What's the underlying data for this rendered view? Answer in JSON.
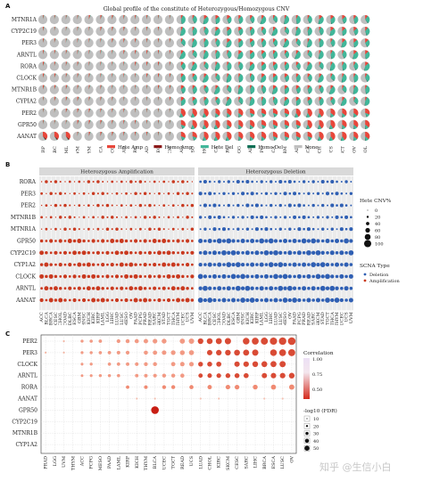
{
  "panelA": {
    "letter": "A",
    "title": "Global profile of the constitute of Heterozygous/Homozygous CNV",
    "rows": [
      "MTNR1A",
      "CYP2C19",
      "PER3",
      "ARNTL",
      "RORA",
      "CLOCK",
      "MTNR1B",
      "CYPIA2",
      "PER2",
      "GPR50",
      "AANAT"
    ],
    "columns": [
      "KIRP",
      "DLBC",
      "LAML",
      "UVM",
      "THYM",
      "THCA",
      "ACC",
      "LUAD",
      "KIRC",
      "PRAD",
      "UCEC",
      "SKCM",
      "PAAD",
      "MESO",
      "LIHC",
      "ESCA",
      "SARC",
      "LGG",
      "COAD",
      "PCPG",
      "BRCA",
      "GBM",
      "READ",
      "BLCA",
      "KICH",
      "UCS",
      "TGCT",
      "OV",
      "CHOL"
    ],
    "legend": [
      {
        "label": "Hete Amp",
        "color": "#e8473b"
      },
      {
        "label": "Homo Amp",
        "color": "#8b1a1a"
      },
      {
        "label": "Hete Del",
        "color": "#41b79a"
      },
      {
        "label": "Homo Del",
        "color": "#0c6e54"
      },
      {
        "label": "None",
        "color": "#bfbfbf"
      }
    ]
  },
  "panelB": {
    "letter": "B",
    "facets": [
      "Heterozygous Amplification",
      "Heterozygous Deletion"
    ],
    "rows": [
      "RORA",
      "PER3",
      "PER2",
      "MTNR1B",
      "MTNR1A",
      "GPR50",
      "CYP2C19",
      "CYP1A2",
      "CLOCK",
      "ARNTL",
      "AANAT"
    ],
    "columns": [
      "ACC",
      "BLCA",
      "BRCA",
      "CESC",
      "CHOL",
      "COAD",
      "DLBC",
      "ESCA",
      "GBM",
      "HNSC",
      "KICH",
      "KIRC",
      "KIRP",
      "LAML",
      "LGG",
      "LIHC",
      "LUAD",
      "LUSC",
      "MESO",
      "OV",
      "PAAD",
      "PCPG",
      "PRAD",
      "READ",
      "SARC",
      "SKCM",
      "STAD",
      "TGCT",
      "THCA",
      "THYM",
      "UCEC",
      "UCS",
      "UVM"
    ],
    "size_legend_title": "Hete CNV%",
    "size_legend": [
      "0",
      "20",
      "40",
      "60",
      "80",
      "100"
    ],
    "type_legend_title": "SCNA Type",
    "type_legend": [
      {
        "label": "Deletion",
        "color": "#2f5fb3"
      },
      {
        "label": "Amplification",
        "color": "#c9391f"
      }
    ]
  },
  "panelC": {
    "letter": "C",
    "rows": [
      "PER2",
      "PER3",
      "CLOCK",
      "ARNTL",
      "RORA",
      "AANAT",
      "GPR50",
      "CYP2C19",
      "MTNR1B",
      "CYP1A2"
    ],
    "columns": [
      "PRAD",
      "LGG",
      "UVM",
      "THYM",
      "ACC",
      "PCPG",
      "MESO",
      "PAAD",
      "LAML",
      "KIRP",
      "KICH",
      "THYM",
      "BLCA",
      "UCEC",
      "TGCT",
      "READ",
      "UCS",
      "LUAD",
      "CHOL",
      "KIRC",
      "SKCM",
      "CESC",
      "SARC",
      "LIHC",
      "BRCA",
      "ESCA",
      "LUSC",
      "OV"
    ],
    "color_legend_title": "Correlation",
    "color_legend_ticks": [
      "1.00",
      "0.75",
      "0.50"
    ],
    "size_legend_title": "-log10 (FDR)",
    "size_legend": [
      "10",
      "20",
      "30",
      "40",
      "50"
    ]
  },
  "watermark": "知乎 @生信小白"
}
